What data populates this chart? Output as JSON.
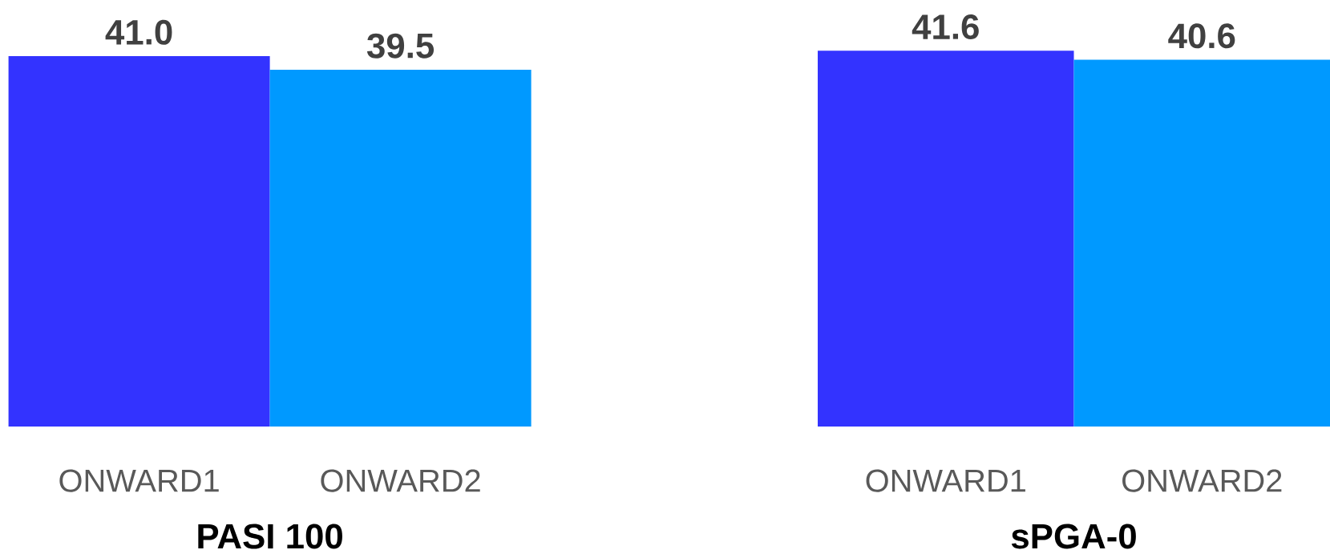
{
  "chart_data": [
    {
      "type": "bar",
      "xlabel": "PASI 100",
      "categories": [
        "ONWARD1",
        "ONWARD2"
      ],
      "values": [
        41.0,
        39.5
      ],
      "colors": [
        "#3333ff",
        "#0099ff"
      ],
      "value_labels": [
        "41.0",
        "39.5"
      ]
    },
    {
      "type": "bar",
      "xlabel": "sPGA-0",
      "categories": [
        "ONWARD1",
        "ONWARD2"
      ],
      "values": [
        41.6,
        40.6
      ],
      "colors": [
        "#3333ff",
        "#0099ff"
      ],
      "value_labels": [
        "41.6",
        "40.6"
      ]
    }
  ]
}
